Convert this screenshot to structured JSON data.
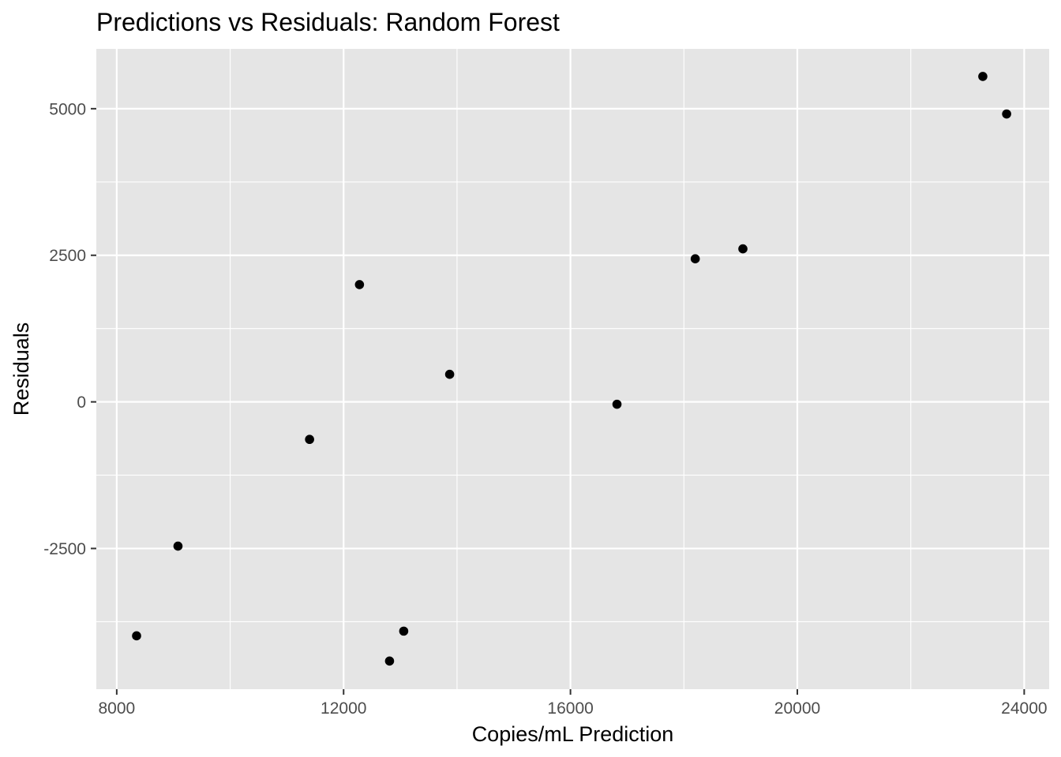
{
  "chart_data": {
    "type": "scatter",
    "title": "Predictions vs Residuals: Random Forest",
    "xlabel": "Copies/mL Prediction",
    "ylabel": "Residuals",
    "xlim": [
      7640,
      24440
    ],
    "ylim": [
      -4900,
      6020
    ],
    "x_ticks": [
      8000,
      12000,
      16000,
      20000,
      24000
    ],
    "x_tick_labels": [
      "8000",
      "12000",
      "16000",
      "20000",
      "24000"
    ],
    "x_minor_ticks": [
      10000,
      14000,
      18000,
      22000
    ],
    "y_ticks": [
      -2500,
      0,
      2500,
      5000
    ],
    "y_tick_labels": [
      "-2500",
      "0",
      "2500",
      "5000"
    ],
    "y_minor_ticks": [
      -3750,
      -1250,
      1250,
      3750
    ],
    "grid": true,
    "legend": "none",
    "panel_color": "#e5e5e5",
    "grid_color": "#ffffff",
    "point_color": "#000000",
    "points": [
      {
        "x": 8350,
        "y": -3990
      },
      {
        "x": 9080,
        "y": -2460
      },
      {
        "x": 11400,
        "y": -640
      },
      {
        "x": 12280,
        "y": 2000
      },
      {
        "x": 12810,
        "y": -4420
      },
      {
        "x": 13060,
        "y": -3910
      },
      {
        "x": 13870,
        "y": 470
      },
      {
        "x": 16820,
        "y": -40
      },
      {
        "x": 18200,
        "y": 2440
      },
      {
        "x": 19040,
        "y": 2610
      },
      {
        "x": 23270,
        "y": 5550
      },
      {
        "x": 23690,
        "y": 4910
      }
    ]
  }
}
